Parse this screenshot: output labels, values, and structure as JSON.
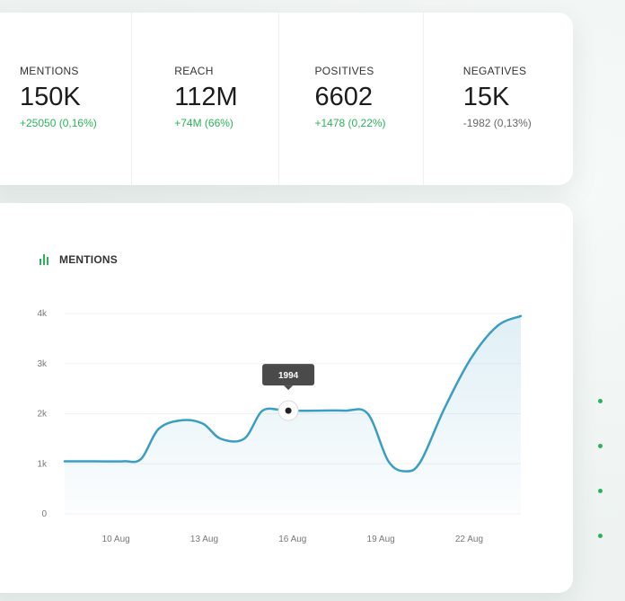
{
  "stats": [
    {
      "label": "MENTIONS",
      "value": "150K",
      "change": "+25050 (0,16%)",
      "trend": "positive"
    },
    {
      "label": "REACH",
      "value": "112M",
      "change": "+74M (66%)",
      "trend": "positive"
    },
    {
      "label": "POSITIVES",
      "value": "6602",
      "change": "+1478 (0,22%)",
      "trend": "positive"
    },
    {
      "label": "NEGATIVES",
      "value": "15K",
      "change": "-1982 (0,13%)",
      "trend": "neutral"
    }
  ],
  "chart": {
    "title": "MENTIONS",
    "icon": "bar-chart-icon",
    "tooltip_value": "1994"
  },
  "chart_data": {
    "type": "area",
    "title": "MENTIONS",
    "xlabel": "",
    "ylabel": "",
    "x_tick_labels": [
      "10 Aug",
      "13 Aug",
      "16 Aug",
      "19 Aug",
      "22 Aug"
    ],
    "y_tick_labels": [
      "0",
      "1k",
      "2k",
      "3k",
      "4k"
    ],
    "ylim": [
      0,
      4000
    ],
    "grid": true,
    "line_color": "#3a9dc4",
    "points": [
      {
        "x": 8.5,
        "y": 1050
      },
      {
        "x": 9.5,
        "y": 1050
      },
      {
        "x": 10.5,
        "y": 1050
      },
      {
        "x": 11.1,
        "y": 1100
      },
      {
        "x": 11.7,
        "y": 1700
      },
      {
        "x": 12.5,
        "y": 1870
      },
      {
        "x": 13.2,
        "y": 1800
      },
      {
        "x": 13.8,
        "y": 1500
      },
      {
        "x": 14.6,
        "y": 1500
      },
      {
        "x": 15.2,
        "y": 2050
      },
      {
        "x": 15.8,
        "y": 2080
      },
      {
        "x": 16.2,
        "y": 2060
      },
      {
        "x": 17.0,
        "y": 2060
      },
      {
        "x": 18.0,
        "y": 2060
      },
      {
        "x": 18.8,
        "y": 2000
      },
      {
        "x": 19.5,
        "y": 1050
      },
      {
        "x": 20.1,
        "y": 850
      },
      {
        "x": 20.6,
        "y": 1050
      },
      {
        "x": 21.4,
        "y": 2100
      },
      {
        "x": 22.3,
        "y": 3100
      },
      {
        "x": 23.2,
        "y": 3750
      },
      {
        "x": 24.0,
        "y": 3950
      }
    ],
    "highlight": {
      "x": 16.1,
      "y": 2060,
      "label": "1994"
    }
  },
  "colors": {
    "accent_green": "#2bb35a",
    "line_blue": "#3a9dc4",
    "tooltip_bg": "#4a4a4a"
  }
}
